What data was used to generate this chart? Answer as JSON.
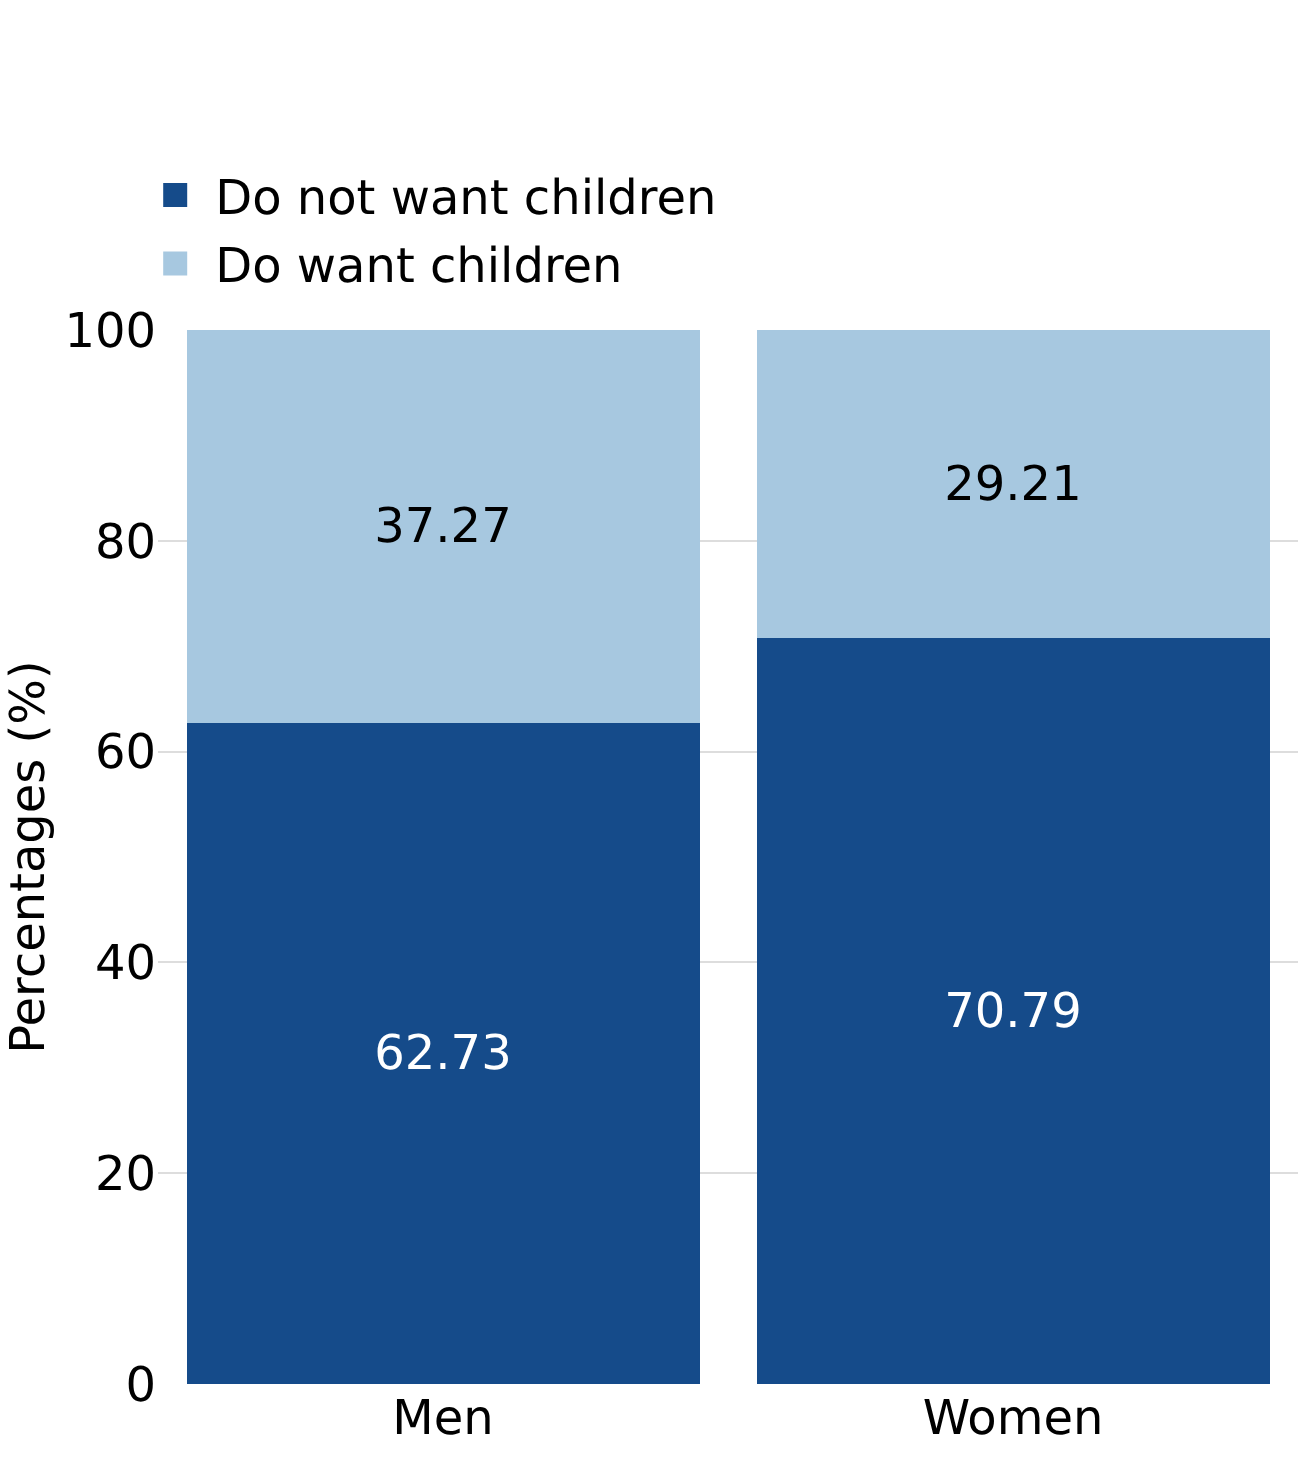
{
  "chart_data": {
    "type": "bar",
    "stacked": true,
    "ylabel": "Percentages (%)",
    "categories": [
      "Men",
      "Women"
    ],
    "series": [
      {
        "name": "Do not want children",
        "color": "#154b8a",
        "values": [
          62.73,
          70.79
        ]
      },
      {
        "name": "Do want children",
        "color": "#a7c8e0",
        "values": [
          37.27,
          29.21
        ]
      }
    ],
    "ylim": [
      0,
      100
    ],
    "yticks": [
      0,
      20,
      40,
      60,
      80,
      100
    ],
    "grid": "y",
    "legend": "top left",
    "data_labels": true
  }
}
